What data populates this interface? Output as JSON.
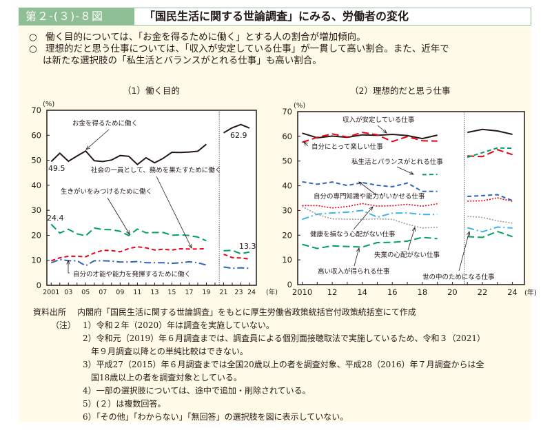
{
  "header": {
    "figure_number": "第２-(３)-８図",
    "title": "「国民生活に関する世論調査」にみる、労働者の変化"
  },
  "summary": [
    "働く目的については、「お金を得るために働く」とする人の割合が増加傾向。",
    "理想的だと思う仕事については、「収入が安定している仕事」が一貫して高い割合。また、近年で",
    "は新たな選択肢の「私生活とバランスがとれる仕事」も高い割合。"
  ],
  "summary_bullet": "○",
  "colors": {
    "header_green": "#8fbf94",
    "panel_bg": "#fffbe8",
    "black": "#231815",
    "red": "#e60012",
    "green": "#00a05a",
    "blue": "#2e64b4",
    "cyan": "#3cb4e6",
    "gray": "#9a9a9a"
  },
  "chart_data": [
    {
      "type": "line",
      "title": "（1）働く目的",
      "ylabel": "(%)",
      "xlabel": "(年)",
      "ylim": [
        0,
        70
      ],
      "yticks": [
        0,
        10,
        20,
        30,
        40,
        50,
        60,
        70
      ],
      "x_tick_labels": [
        "2001",
        "03",
        "05",
        "07",
        "09",
        "11",
        "13",
        "15",
        "17",
        "19",
        "21",
        "23",
        "24"
      ],
      "x": [
        2001,
        2002,
        2003,
        2004,
        2005,
        2006,
        2007,
        2008,
        2009,
        2010,
        2011,
        2012,
        2013,
        2014,
        2015,
        2016,
        2017,
        2018,
        2019,
        2021,
        2022,
        2023,
        2024
      ],
      "break_note": "2020 not surveyed; method change after 2019",
      "series": [
        {
          "name": "お金を得るために働く",
          "style": "solid",
          "color": "#231815",
          "values": [
            49.5,
            52.8,
            49.6,
            51.7,
            53.7,
            49.8,
            49.5,
            50.1,
            51.9,
            51.6,
            48.3,
            51.0,
            49.0,
            50.8,
            53.2,
            53.1,
            53.3,
            53.6,
            56.4,
            61.0,
            63.0,
            64.3,
            62.9
          ],
          "label_first": "49.5",
          "label_last": "62.9"
        },
        {
          "name": "社会の一員として、務めを果たすために働く",
          "style": "dashed",
          "color": "#e60012",
          "values": [
            9.8,
            11.0,
            11.6,
            11.6,
            11.4,
            12.9,
            14.0,
            13.9,
            13.4,
            14.7,
            15.4,
            15.0,
            14.1,
            14.4,
            14.1,
            14.6,
            14.5,
            14.5,
            14.7,
            12.4,
            11.1,
            10.9,
            10.5
          ]
        },
        {
          "name": "生きがいをみつけるために働く",
          "style": "dashed-long",
          "color": "#00a05a",
          "values": [
            24.4,
            20.9,
            22.4,
            20.6,
            19.8,
            22.9,
            22.3,
            22.2,
            21.6,
            19.9,
            22.5,
            21.0,
            21.1,
            21.1,
            20.0,
            20.2,
            19.9,
            19.3,
            17.8,
            13.8,
            14.0,
            12.6,
            13.3
          ],
          "label_first": "24.4",
          "label_last": "13.3"
        },
        {
          "name": "自分の才能や能力を発揮するために働く",
          "style": "dash-dot",
          "color": "#2e64b4",
          "values": [
            9.0,
            10.3,
            9.8,
            9.8,
            7.8,
            9.8,
            9.8,
            9.7,
            9.3,
            9.3,
            9.5,
            9.0,
            9.0,
            9.0,
            8.8,
            9.0,
            9.4,
            9.0,
            8.1,
            7.3,
            6.8,
            7.0,
            6.8
          ]
        }
      ]
    },
    {
      "type": "line",
      "title": "（2）理想的だと思う仕事",
      "ylabel": "(%)",
      "xlabel": "(年)",
      "ylim": [
        0,
        70
      ],
      "yticks": [
        0,
        10,
        20,
        30,
        40,
        50,
        60,
        70
      ],
      "x_tick_labels": [
        "2010",
        "12",
        "14",
        "16",
        "18",
        "20",
        "22",
        "24"
      ],
      "x": [
        2010,
        2011,
        2012,
        2013,
        2014,
        2015,
        2016,
        2017,
        2018,
        2019,
        2021,
        2022,
        2023,
        2024
      ],
      "series": [
        {
          "name": "収入が安定している仕事",
          "style": "solid",
          "color": "#231815",
          "values": [
            61.3,
            59.4,
            60.1,
            59.6,
            60.6,
            60.4,
            60.8,
            60.3,
            59.1,
            60.5,
            61.6,
            62.8,
            62.2,
            60.8
          ]
        },
        {
          "name": "自分にとって楽しい仕事",
          "style": "dashed-long",
          "color": "#e60012",
          "values": [
            57.6,
            59.6,
            61.0,
            59.7,
            61.6,
            60.6,
            57.9,
            59.9,
            58.2,
            58.1,
            52.1,
            51.8,
            54.6,
            52.6
          ]
        },
        {
          "name": "私生活とバランスがとれる仕事",
          "style": "dashed",
          "color": "#00a05a",
          "values": [
            null,
            null,
            null,
            null,
            null,
            null,
            null,
            null,
            44.5,
            44.6,
            51.5,
            53.4,
            55.3,
            55.2
          ]
        },
        {
          "name": "自分の専門知識や能力がいかせる仕事",
          "style": "dashed",
          "color": "#2e64b4",
          "values": [
            41.6,
            40.6,
            41.5,
            40.1,
            41.3,
            40.2,
            39.6,
            41.1,
            37.7,
            37.7,
            35.7,
            36.0,
            36.4,
            34.0
          ]
        },
        {
          "name": "健康を損なう心配がない仕事",
          "style": "dotted",
          "color": "#e60012",
          "values": [
            32.0,
            32.0,
            31.0,
            31.6,
            32.8,
            31.8,
            31.9,
            32.5,
            31.7,
            32.7,
            33.8,
            33.9,
            35.1,
            33.7
          ]
        },
        {
          "name": "世の中のためになる仕事",
          "style": "dash-dot",
          "color": "#3cb4e6",
          "values": [
            26.4,
            28.5,
            29.0,
            29.3,
            30.0,
            27.3,
            28.9,
            29.0,
            28.4,
            28.4,
            23.0,
            21.4,
            23.3,
            22.9
          ]
        },
        {
          "name": "失業の心配がない仕事",
          "style": "dotted",
          "color": "#9a9a9a",
          "values": [
            31.6,
            28.4,
            26.6,
            26.5,
            26.4,
            26.6,
            26.4,
            24.4,
            22.9,
            23.2,
            27.6,
            27.2,
            25.8,
            24.9
          ]
        },
        {
          "name": "高い収入が得られる仕事",
          "style": "dashed-long",
          "color": "#00a05a",
          "values": [
            16.3,
            14.6,
            15.7,
            15.4,
            15.2,
            17.0,
            17.1,
            17.6,
            19.1,
            18.6,
            19.4,
            19.1,
            21.5,
            19.4
          ]
        }
      ]
    }
  ],
  "chart_labels": {
    "c1": {
      "money": "お金を得るために働く",
      "society": "社会の一員として、務めを果たすために働く",
      "ikigai": "生きがいをみつけるために働く",
      "talent": "自分の才能や能力を発揮するために働く"
    },
    "c2": {
      "stable": "収入が安定している仕事",
      "fun": "自分にとって楽しい仕事",
      "balance": "私生活とバランスがとれる仕事",
      "expertise": "自分の専門知識や能力がいかせる仕事",
      "health": "健康を損なう心配がない仕事",
      "unemp": "失業の心配がない仕事",
      "high_income": "高い収入が得られる仕事",
      "society": "世の中のためになる仕事"
    }
  },
  "notes": {
    "source_label": "資料出所",
    "source_text": "内閣府「国民生活に関する世論調査」をもとに厚生労働省政策統括官付政策統括室にて作成",
    "note_label": "（注）",
    "items": [
      "1）令和２年（2020）年は調査を実施していない。",
      "2）令和元（2019）年６月調査までは、調査員による個別面接聴取法で実施しているため、令和３（2021）",
      "年９月調査以降との単純比較はできない。",
      "3）平成27（2015）年６月調査までは全国20歳以上の者を調査対象、平成28（2016）年７月調査からは全",
      "国18歳以上の者を調査対象としている。",
      "4）一部の選択肢については、途中で追加・削除されている。",
      "5）(２）は複数回答。",
      "6）「その他」「わからない」「無回答」の選択肢を図に表示していない。"
    ]
  }
}
